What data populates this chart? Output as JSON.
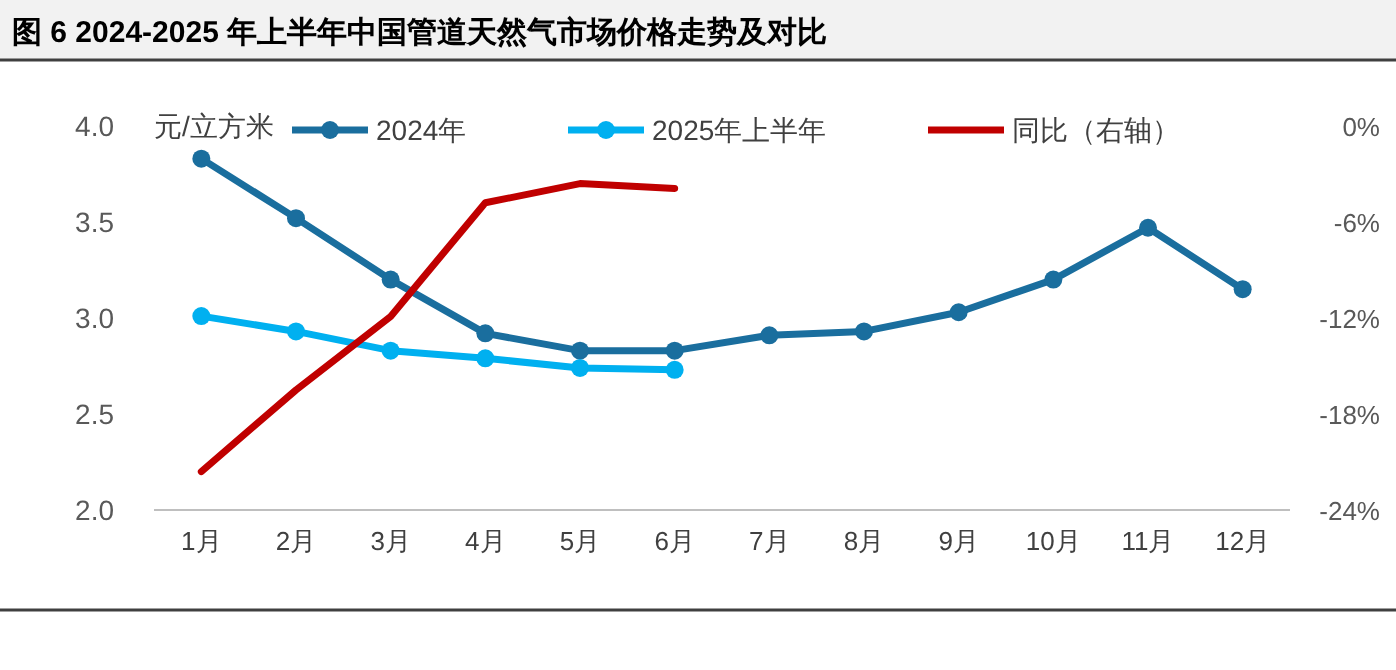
{
  "chart_data": {
    "type": "line",
    "title": "图 6 2024-2025 年上半年中国管道天然气市场价格走势及对比",
    "ylabel": "元/立方米",
    "categories": [
      "1月",
      "2月",
      "3月",
      "4月",
      "5月",
      "6月",
      "7月",
      "8月",
      "9月",
      "10月",
      "11月",
      "12月"
    ],
    "series": [
      {
        "name": "2024年",
        "color": "#1a6e9e",
        "marker": "circle",
        "values": [
          3.83,
          3.52,
          3.2,
          2.92,
          2.83,
          2.83,
          2.91,
          2.93,
          3.03,
          3.2,
          3.47,
          3.15
        ]
      },
      {
        "name": "2025年上半年",
        "color": "#00b0f0",
        "marker": "circle",
        "values": [
          3.01,
          2.93,
          2.83,
          2.79,
          2.74,
          2.73,
          null,
          null,
          null,
          null,
          null,
          null
        ]
      },
      {
        "name": "同比（右轴）",
        "color": "#c00000",
        "marker": "none",
        "axis": "y2",
        "values": [
          -21.6,
          -16.5,
          -11.9,
          -4.8,
          -3.6,
          -3.9,
          null,
          null,
          null,
          null,
          null,
          null
        ]
      }
    ],
    "ylim": [
      2,
      4
    ],
    "yticks": [
      {
        "value": 2,
        "label": "2.0"
      },
      {
        "value": 2.5,
        "label": "2.5"
      },
      {
        "value": 3,
        "label": "3.0"
      },
      {
        "value": 3.5,
        "label": "3.5"
      },
      {
        "value": 4,
        "label": "4.0"
      }
    ],
    "y2lim": [
      -24,
      0
    ],
    "y2ticks": [
      {
        "value": -24,
        "label": "-24%"
      },
      {
        "value": -18,
        "label": "-18%"
      },
      {
        "value": -12,
        "label": "-12%"
      },
      {
        "value": -6,
        "label": "-6%"
      },
      {
        "value": 0,
        "label": "0%"
      }
    ],
    "legend": "top"
  }
}
